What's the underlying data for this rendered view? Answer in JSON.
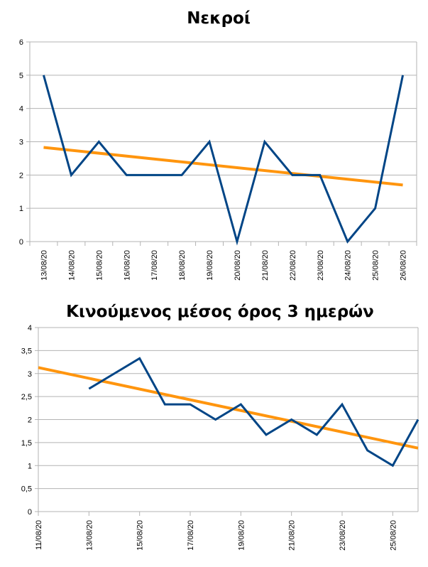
{
  "chart_data": [
    {
      "type": "line",
      "title": "Νεκροί",
      "categories": [
        "13/08/20",
        "14/08/20",
        "15/08/20",
        "16/08/20",
        "17/08/20",
        "18/08/20",
        "19/08/20",
        "20/08/20",
        "21/08/20",
        "22/08/20",
        "23/08/20",
        "24/08/20",
        "25/08/20",
        "26/08/20"
      ],
      "series": [
        {
          "values": [
            5,
            2,
            3,
            2,
            2,
            2,
            3,
            0,
            3,
            2,
            2,
            0,
            1,
            5
          ],
          "color": "#004586"
        }
      ],
      "trendline": {
        "type": "linear",
        "start": 2.83,
        "end": 1.7,
        "color": "#ff950e"
      },
      "ylim": [
        0,
        6
      ],
      "yticks": [
        "0",
        "1",
        "2",
        "3",
        "4",
        "5",
        "6"
      ],
      "grid": true
    },
    {
      "type": "line",
      "title": "Κινούμενος μέσος όρος 3 ημερών",
      "x": [
        "13/08/20",
        "14/08/20",
        "15/08/20",
        "16/08/20",
        "17/08/20",
        "18/08/20",
        "19/08/20",
        "20/08/20",
        "21/08/20",
        "22/08/20",
        "23/08/20",
        "24/08/20",
        "25/08/20",
        "26/08/20"
      ],
      "series": [
        {
          "values": [
            2.67,
            3.0,
            3.33,
            2.33,
            2.33,
            2.0,
            2.33,
            1.67,
            2.0,
            1.67,
            2.33,
            1.33,
            1.0,
            2.0
          ],
          "color": "#004586"
        }
      ],
      "trendline": {
        "type": "linear",
        "x": [
          "11/08/20",
          "26/08/20"
        ],
        "values": [
          3.13,
          1.38
        ],
        "color": "#ff950e"
      },
      "xlim": [
        "11/08/20",
        "26/08/20"
      ],
      "xticks": [
        "11/08/20",
        "13/08/20",
        "15/08/20",
        "17/08/20",
        "19/08/20",
        "21/08/20",
        "23/08/20",
        "25/08/20"
      ],
      "ylim": [
        0,
        4
      ],
      "yticks": [
        "0",
        "0,5",
        "1",
        "1,5",
        "2",
        "2,5",
        "3",
        "3,5",
        "4"
      ],
      "grid": true
    }
  ]
}
